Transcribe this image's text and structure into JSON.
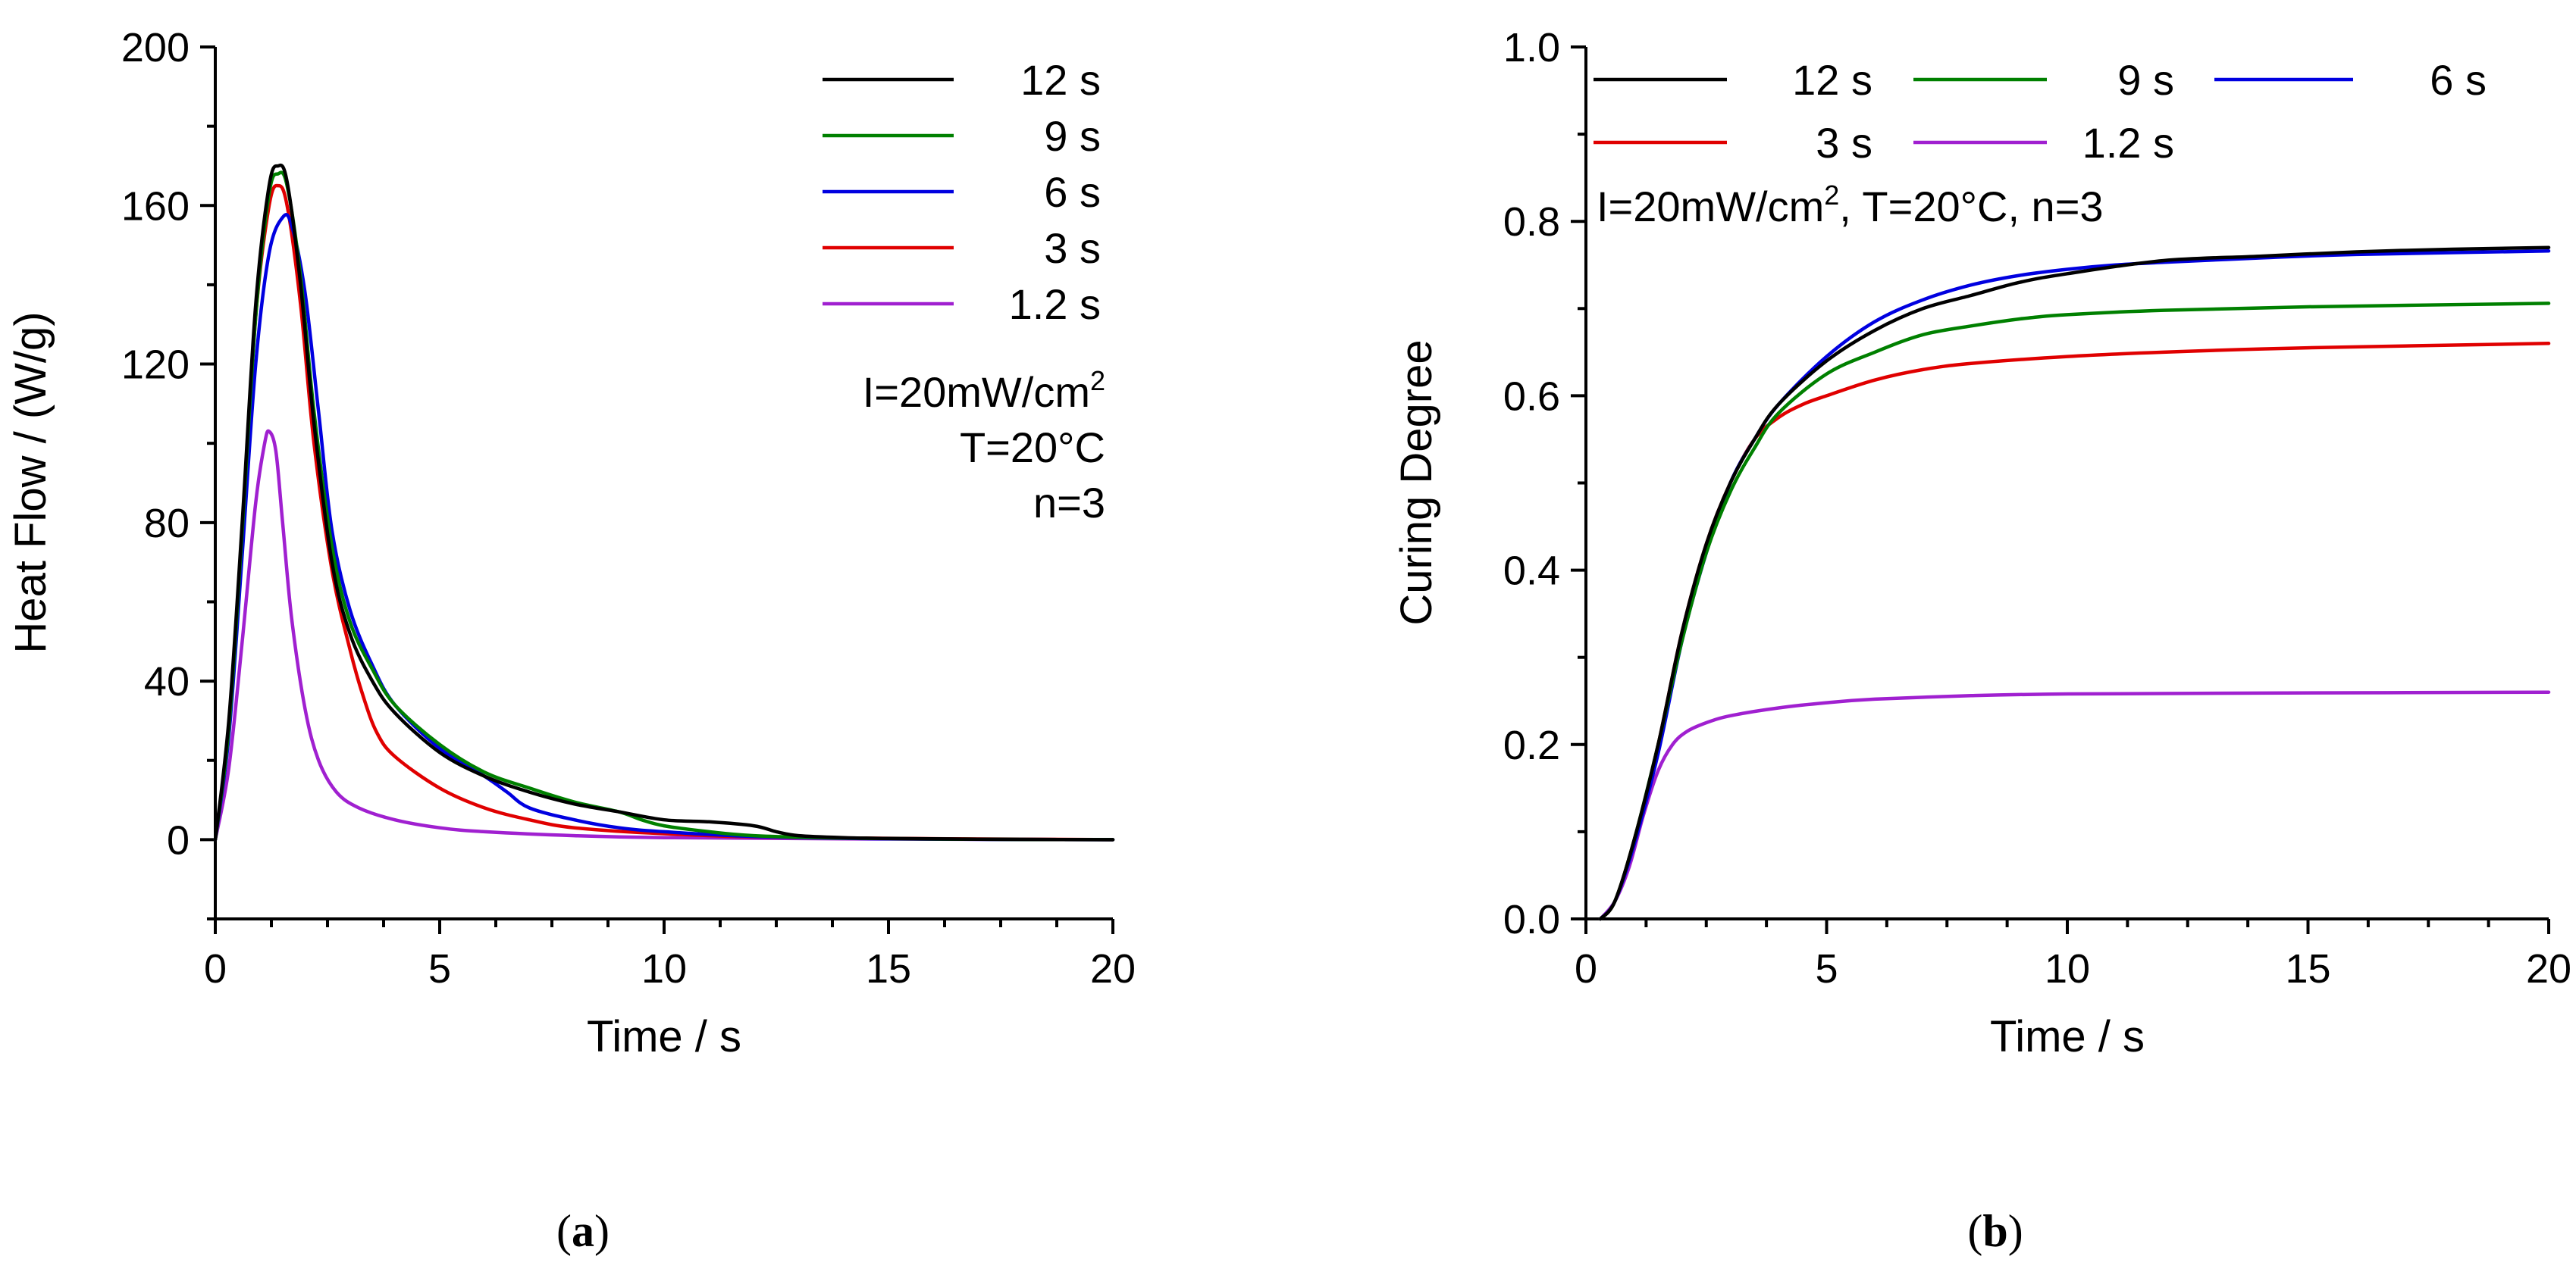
{
  "colors": {
    "12 s": "#000000",
    "9 s": "#008000",
    "6 s": "#0000e0",
    "3 s": "#e00000",
    "1.2 s": "#a020d0"
  },
  "chart_data": [
    {
      "id": "a",
      "type": "line",
      "caption": "a",
      "xlabel": "Time / s",
      "ylabel": "Heat Flow / (W/g)",
      "xlim": [
        0,
        20
      ],
      "ylim": [
        -20,
        200
      ],
      "xticks": [
        0,
        5,
        10,
        15,
        20
      ],
      "yticks": [
        0,
        40,
        80,
        120,
        160,
        200
      ],
      "legend": {
        "position": "top-right",
        "entries": [
          "12 s",
          "9 s",
          "6 s",
          "3 s",
          "1.2 s"
        ]
      },
      "annotations": [
        "I=20mW/cm",
        "T=20°C",
        "n=3"
      ],
      "annotation_superscript": "2",
      "series": [
        {
          "name": "12 s",
          "x": [
            0,
            0.3,
            0.6,
            0.9,
            1.2,
            1.4,
            1.6,
            1.9,
            2.2,
            2.6,
            3,
            3.5,
            4,
            5,
            6,
            7,
            8,
            9,
            10,
            11,
            12,
            12.5,
            13,
            14,
            15,
            17,
            20
          ],
          "y": [
            0,
            30,
            80,
            135,
            165,
            170,
            166,
            140,
            105,
            70,
            52,
            40,
            32,
            22,
            16,
            12,
            9,
            7,
            5,
            4.5,
            3.5,
            2,
            1,
            0.5,
            0.3,
            0.1,
            0
          ]
        },
        {
          "name": "9 s",
          "x": [
            0,
            0.3,
            0.6,
            0.9,
            1.2,
            1.4,
            1.6,
            1.9,
            2.2,
            2.6,
            3,
            3.5,
            4,
            5,
            6,
            7,
            8,
            9,
            9.5,
            10,
            11,
            12,
            14,
            17,
            20
          ],
          "y": [
            0,
            28,
            78,
            132,
            163,
            168,
            165,
            142,
            108,
            74,
            55,
            43,
            34,
            24,
            17,
            13,
            9.5,
            7,
            5,
            3.5,
            2,
            1,
            0.4,
            0.1,
            0
          ]
        },
        {
          "name": "6 s",
          "x": [
            0,
            0.3,
            0.6,
            0.9,
            1.2,
            1.5,
            1.7,
            2,
            2.3,
            2.6,
            3,
            3.5,
            4,
            5,
            6,
            6.5,
            7,
            8,
            9,
            10,
            12,
            15,
            20
          ],
          "y": [
            0,
            26,
            72,
            120,
            148,
            157,
            155,
            138,
            108,
            78,
            58,
            44,
            34,
            23,
            16,
            12,
            8,
            5,
            3,
            2,
            0.8,
            0.2,
            0
          ]
        },
        {
          "name": "3 s",
          "x": [
            0,
            0.3,
            0.6,
            0.9,
            1.2,
            1.4,
            1.6,
            1.9,
            2.2,
            2.6,
            3,
            3.3,
            3.6,
            4,
            5,
            6,
            7,
            8,
            10,
            13,
            20
          ],
          "y": [
            0,
            28,
            78,
            132,
            160,
            165,
            160,
            135,
            100,
            68,
            48,
            36,
            27,
            21,
            13,
            8,
            5,
            3,
            1.5,
            0.5,
            0
          ]
        },
        {
          "name": "1.2 s",
          "x": [
            0,
            0.3,
            0.6,
            0.9,
            1.1,
            1.2,
            1.35,
            1.5,
            1.7,
            2,
            2.3,
            2.7,
            3.2,
            4,
            5,
            6,
            8,
            10,
            14,
            20
          ],
          "y": [
            0,
            18,
            50,
            85,
            100,
            103,
            98,
            80,
            56,
            33,
            20,
            12,
            8,
            5,
            3,
            2,
            1,
            0.5,
            0.2,
            0
          ]
        }
      ]
    },
    {
      "id": "b",
      "type": "line",
      "caption": "b",
      "xlabel": "Time / s",
      "ylabel": "Curing Degree",
      "xlim": [
        0,
        20
      ],
      "ylim": [
        0,
        1.0
      ],
      "xticks": [
        0,
        5,
        10,
        15,
        20
      ],
      "yticks": [
        0.0,
        0.2,
        0.4,
        0.6,
        0.8,
        1.0
      ],
      "legend": {
        "position": "top",
        "entries": [
          "12 s",
          "9 s",
          "6 s",
          "3 s",
          "1.2 s"
        ]
      },
      "annotations": [
        "I=20mW/cm",
        ", T=20°C,  n=3"
      ],
      "annotation_superscript": "2",
      "series": [
        {
          "name": "12 s",
          "x": [
            0.3,
            0.6,
            1,
            1.5,
            2,
            2.5,
            3,
            3.5,
            4,
            5,
            6,
            7,
            8,
            9,
            10,
            12,
            14,
            16,
            18,
            20
          ],
          "y": [
            0,
            0.02,
            0.09,
            0.2,
            0.33,
            0.43,
            0.5,
            0.55,
            0.59,
            0.64,
            0.675,
            0.7,
            0.715,
            0.73,
            0.74,
            0.755,
            0.76,
            0.765,
            0.768,
            0.77
          ]
        },
        {
          "name": "9 s",
          "x": [
            0.3,
            0.6,
            1,
            1.5,
            2,
            2.5,
            3,
            3.5,
            4,
            5,
            6,
            7,
            8,
            9,
            10,
            12,
            15,
            20
          ],
          "y": [
            0,
            0.02,
            0.09,
            0.2,
            0.32,
            0.42,
            0.49,
            0.54,
            0.58,
            0.625,
            0.65,
            0.67,
            0.68,
            0.688,
            0.693,
            0.698,
            0.702,
            0.706
          ]
        },
        {
          "name": "6 s",
          "x": [
            0.3,
            0.6,
            1,
            1.5,
            2,
            2.5,
            3,
            3.5,
            4,
            5,
            6,
            7,
            8,
            9,
            10,
            11,
            12,
            14,
            16,
            20
          ],
          "y": [
            0,
            0.02,
            0.085,
            0.19,
            0.32,
            0.42,
            0.5,
            0.55,
            0.59,
            0.645,
            0.685,
            0.71,
            0.727,
            0.738,
            0.745,
            0.75,
            0.753,
            0.758,
            0.762,
            0.766
          ]
        },
        {
          "name": "3 s",
          "x": [
            0.3,
            0.6,
            1,
            1.5,
            2,
            2.5,
            3,
            3.5,
            4,
            4.5,
            5,
            6,
            7,
            8,
            10,
            12,
            15,
            20
          ],
          "y": [
            0,
            0.02,
            0.09,
            0.2,
            0.33,
            0.43,
            0.5,
            0.55,
            0.575,
            0.59,
            0.6,
            0.618,
            0.63,
            0.637,
            0.645,
            0.65,
            0.655,
            0.66
          ]
        },
        {
          "name": "1.2 s",
          "x": [
            0.3,
            0.6,
            0.9,
            1.2,
            1.5,
            1.8,
            2.1,
            2.5,
            3,
            4,
            5,
            6,
            8,
            10,
            14,
            20
          ],
          "y": [
            0,
            0.02,
            0.06,
            0.12,
            0.17,
            0.2,
            0.215,
            0.225,
            0.233,
            0.242,
            0.248,
            0.252,
            0.256,
            0.258,
            0.259,
            0.26
          ]
        }
      ]
    }
  ]
}
